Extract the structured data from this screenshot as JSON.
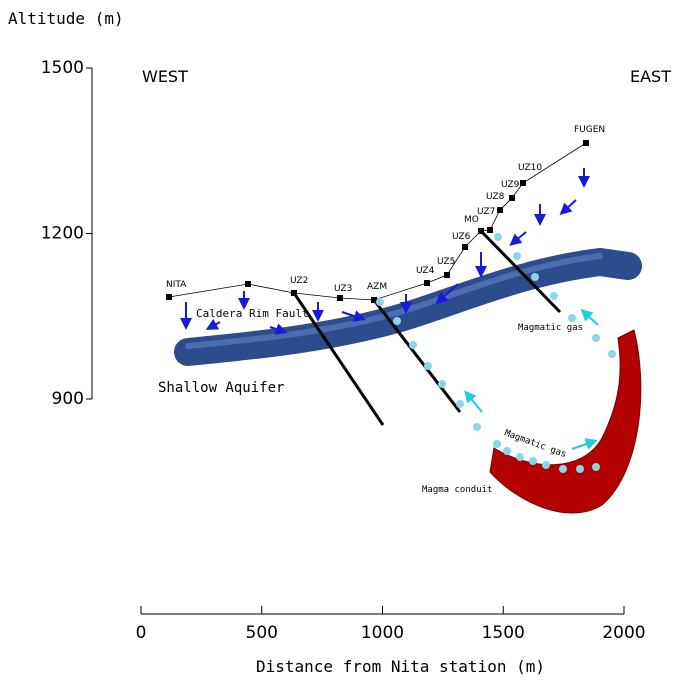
{
  "axes": {
    "y_label": "Altitude (m)",
    "y_ticks": [
      1500,
      1200,
      900
    ],
    "x_label": "Distance from Nita station (m)",
    "x_ticks": [
      0,
      500,
      1000,
      1500,
      2000
    ]
  },
  "directions": {
    "west": "WEST",
    "east": "EAST"
  },
  "stations": [
    "NITA",
    "UZ2",
    "UZ3",
    "AZM",
    "UZ4",
    "UZ5",
    "UZ6",
    "MO",
    "UZ7",
    "UZ8",
    "UZ9",
    "UZ10",
    "FUGEN"
  ],
  "labels": {
    "fault": "Caldera Rim Fault",
    "aquifer": "Shallow Aquifer",
    "gas_upper": "Magmatic gas",
    "gas_lower": "Magmatic gas",
    "conduit": "Magma conduit"
  }
}
